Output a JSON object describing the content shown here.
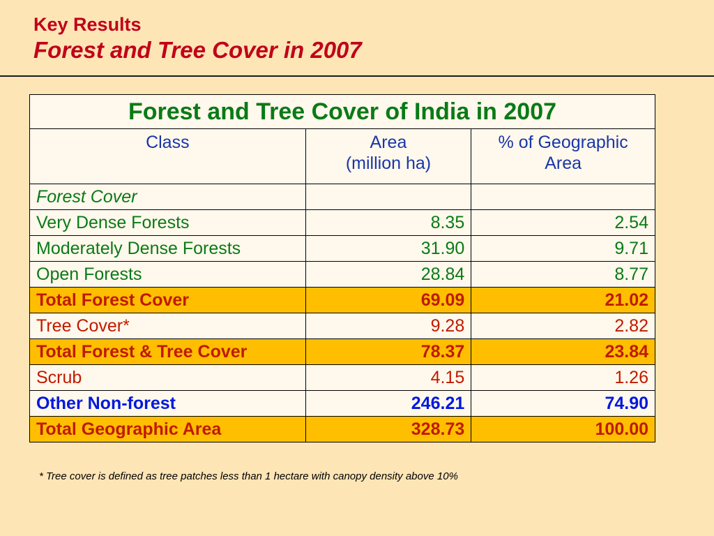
{
  "header": {
    "subtitle": "Key Results",
    "title": "Forest and Tree Cover in 2007"
  },
  "table": {
    "caption": "Forest and Tree Cover of India in 2007",
    "columns": {
      "class": "Class",
      "area_line1": "Area",
      "area_line2": "(million ha)",
      "pct_line1": "% of Geographic",
      "pct_line2": "Area"
    },
    "section_label": "Forest Cover",
    "rows": [
      {
        "label": "Very Dense Forests",
        "area": "8.35",
        "pct": "2.54"
      },
      {
        "label": "Moderately Dense Forests",
        "area": "31.90",
        "pct": "9.71"
      },
      {
        "label": "Open Forests",
        "area": "28.84",
        "pct": "8.77"
      },
      {
        "label": "Total Forest Cover",
        "area": "69.09",
        "pct": "21.02"
      },
      {
        "label": "Tree Cover*",
        "area": "9.28",
        "pct": "2.82"
      },
      {
        "label": "Total Forest & Tree Cover",
        "area": "78.37",
        "pct": "23.84"
      },
      {
        "label": "Scrub",
        "area": "4.15",
        "pct": "1.26"
      },
      {
        "label": "Other Non-forest",
        "area": "246.21",
        "pct": "74.90"
      },
      {
        "label": "Total Geographic Area",
        "area": "328.73",
        "pct": "100.00"
      }
    ]
  },
  "footnote": "* Tree cover is defined as tree patches less than 1 hectare with canopy density above 10%",
  "colors": {
    "background": "#fde5b5",
    "title": "#c0001a",
    "caption": "#0a7a16",
    "header_text": "#1a36a8",
    "total_row_fill": "#ffbf00",
    "total_row_text": "#c01a00",
    "non_forest_text": "#0018e0"
  }
}
